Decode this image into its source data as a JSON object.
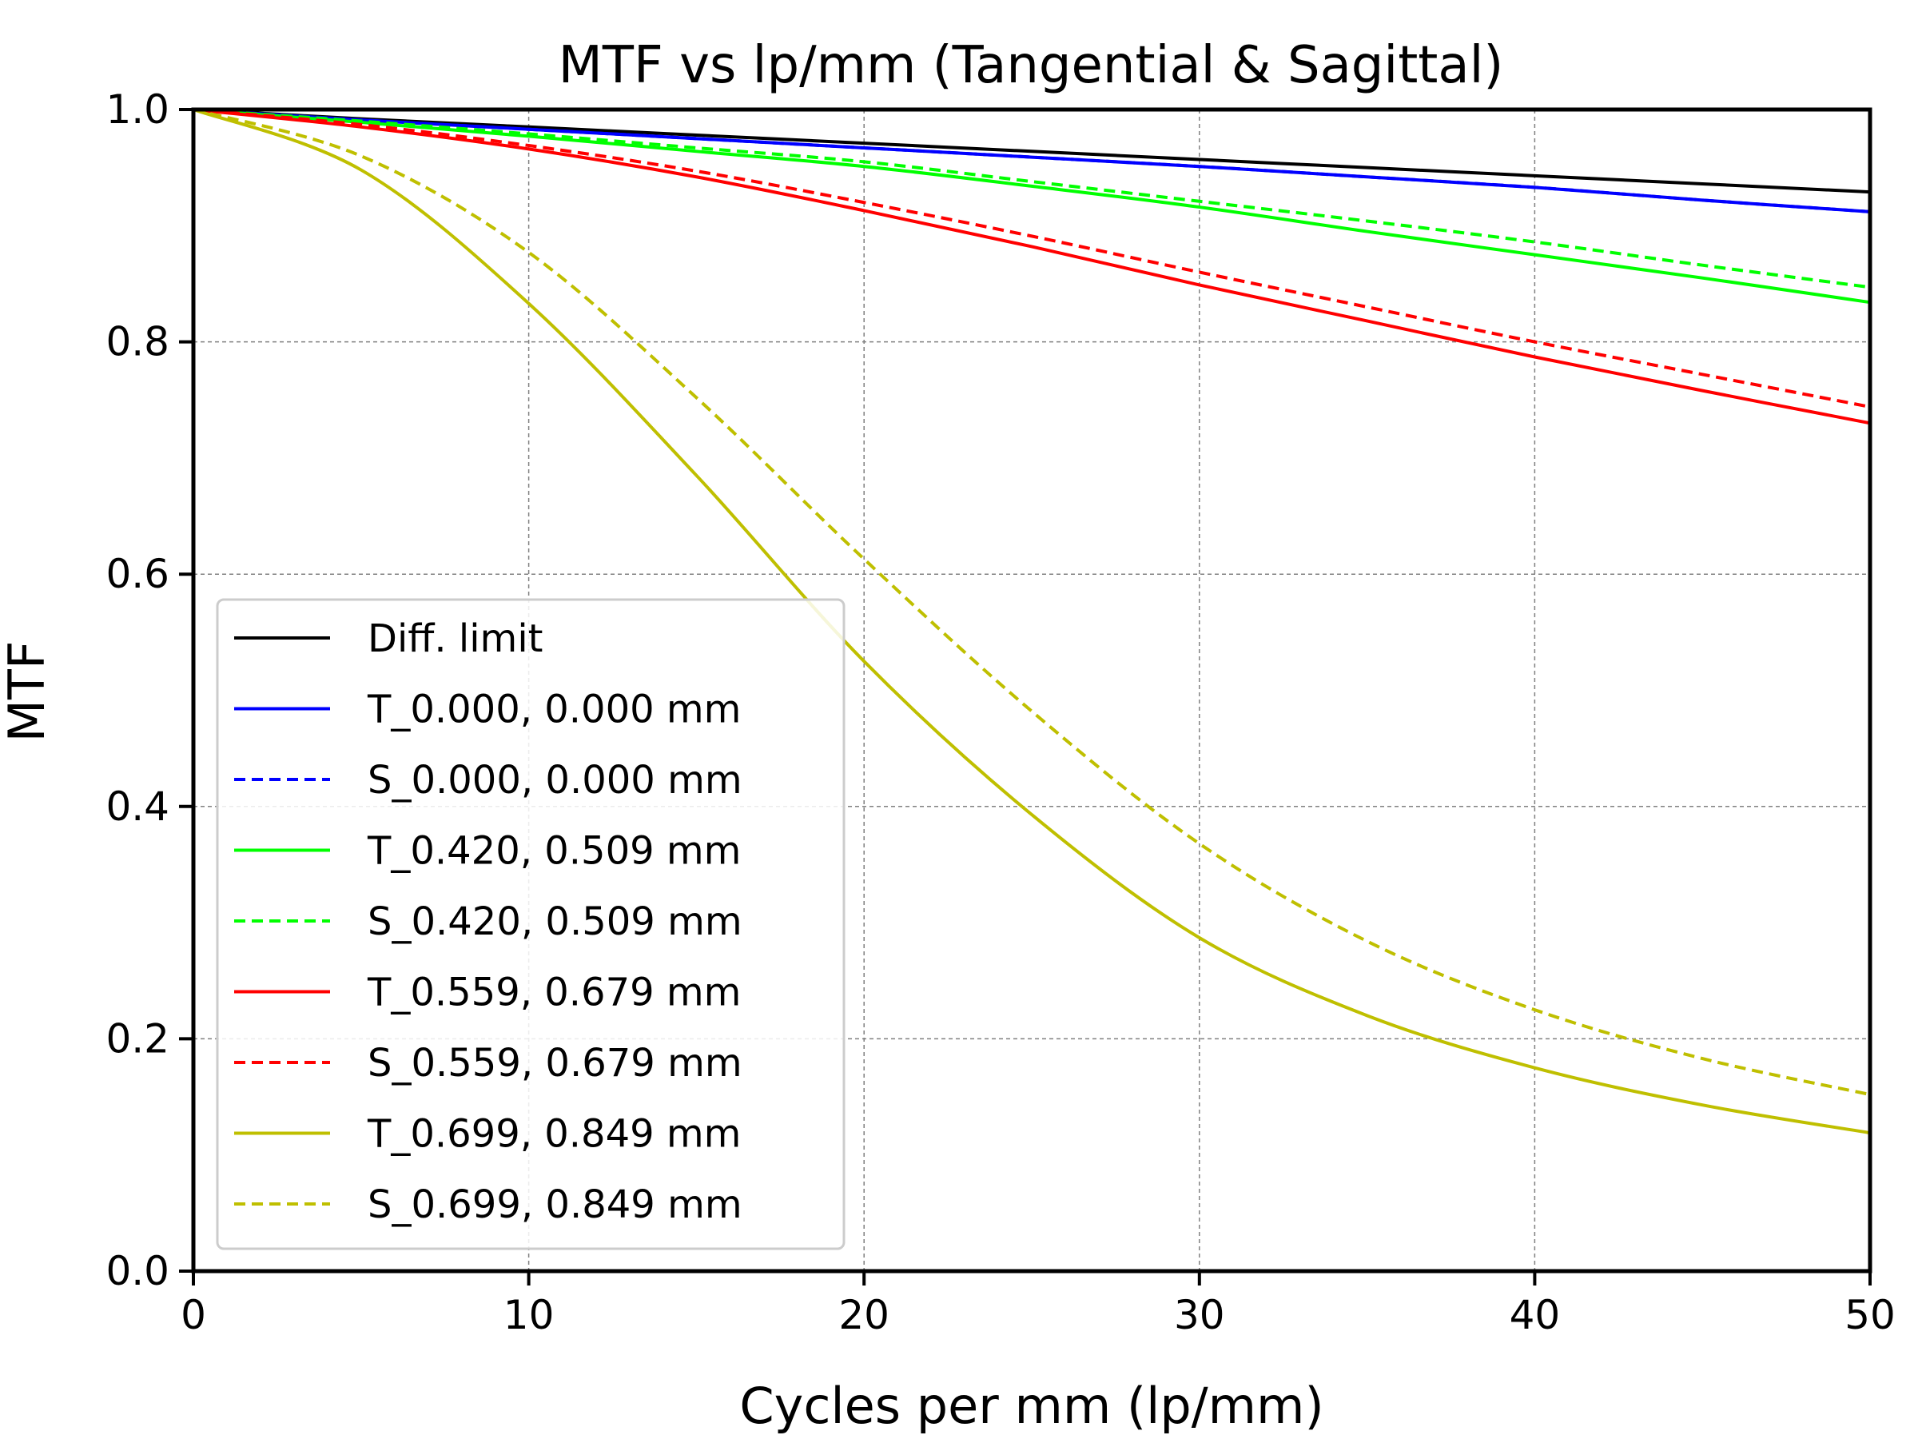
{
  "chart_data": {
    "type": "line",
    "title": "MTF vs lp/mm (Tangential & Sagittal)",
    "xlabel": "Cycles per mm (lp/mm)",
    "ylabel": "MTF",
    "xlim": [
      0,
      50
    ],
    "ylim": [
      0,
      1
    ],
    "x_ticks": [
      "0",
      "10",
      "20",
      "30",
      "40",
      "50"
    ],
    "y_ticks": [
      "0.0",
      "0.2",
      "0.4",
      "0.6",
      "0.8",
      "1.0"
    ],
    "grid": true,
    "legend_position": "center-left",
    "x": [
      0,
      5,
      10,
      15,
      20,
      25,
      30,
      35,
      40,
      45,
      50
    ],
    "series": [
      {
        "name": "Diff. limit",
        "color": "#000000",
        "dash": "solid",
        "values": [
          1.0,
          0.992,
          0.985,
          0.978,
          0.971,
          0.964,
          0.957,
          0.95,
          0.943,
          0.936,
          0.929
        ]
      },
      {
        "name": "T_0.000, 0.000 mm",
        "color": "#0000ff",
        "dash": "solid",
        "values": [
          1.0,
          0.991,
          0.983,
          0.975,
          0.967,
          0.959,
          0.951,
          0.942,
          0.933,
          0.922,
          0.912
        ]
      },
      {
        "name": "S_0.000, 0.000 mm",
        "color": "#0000ff",
        "dash": "dashed",
        "values": [
          1.0,
          0.991,
          0.983,
          0.975,
          0.967,
          0.959,
          0.951,
          0.942,
          0.933,
          0.922,
          0.912
        ]
      },
      {
        "name": "T_0.420, 0.509 mm",
        "color": "#00ff00",
        "dash": "solid",
        "values": [
          1.0,
          0.989,
          0.977,
          0.964,
          0.951,
          0.934,
          0.916,
          0.895,
          0.875,
          0.855,
          0.834
        ]
      },
      {
        "name": "S_0.420, 0.509 mm",
        "color": "#00ff00",
        "dash": "dashed",
        "values": [
          1.0,
          0.99,
          0.979,
          0.967,
          0.955,
          0.938,
          0.921,
          0.904,
          0.886,
          0.866,
          0.847
        ]
      },
      {
        "name": "T_0.559, 0.679 mm",
        "color": "#ff0000",
        "dash": "solid",
        "values": [
          1.0,
          0.985,
          0.966,
          0.942,
          0.913,
          0.882,
          0.849,
          0.818,
          0.787,
          0.758,
          0.73
        ]
      },
      {
        "name": "S_0.559, 0.679 mm",
        "color": "#ff0000",
        "dash": "dashed",
        "values": [
          1.0,
          0.987,
          0.969,
          0.947,
          0.92,
          0.891,
          0.86,
          0.83,
          0.8,
          0.772,
          0.744
        ]
      },
      {
        "name": "T_0.699, 0.849 mm",
        "color": "#bfbf00",
        "dash": "solid",
        "values": [
          1.0,
          0.948,
          0.833,
          0.685,
          0.525,
          0.393,
          0.287,
          0.22,
          0.175,
          0.143,
          0.119
        ]
      },
      {
        "name": "S_0.699, 0.849 mm",
        "color": "#bfbf00",
        "dash": "dashed",
        "values": [
          1.0,
          0.96,
          0.877,
          0.752,
          0.613,
          0.482,
          0.368,
          0.284,
          0.225,
          0.183,
          0.152
        ]
      }
    ]
  }
}
